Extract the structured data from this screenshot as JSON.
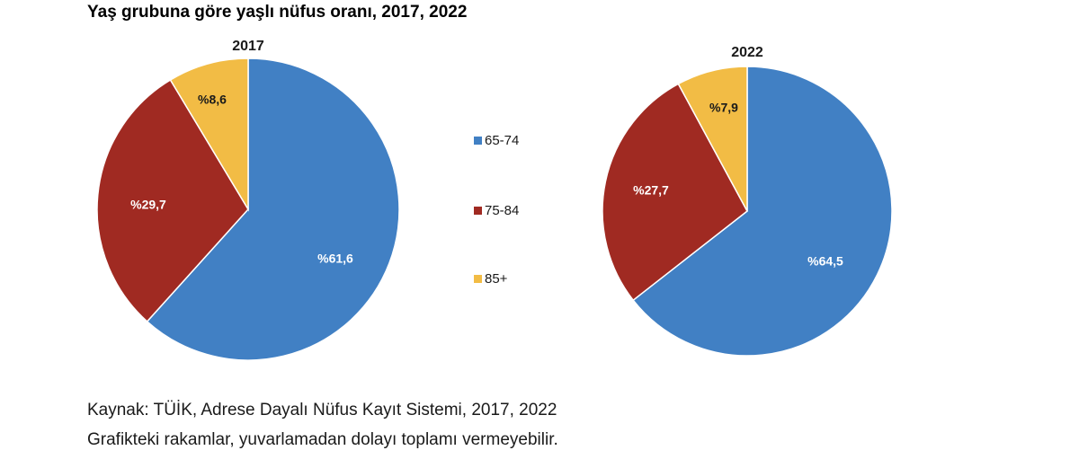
{
  "chart_data": {
    "type": "pie",
    "title": "Yaş grubuna göre yaşlı nüfus oranı, 2017, 2022",
    "categories": [
      "65-74",
      "75-84",
      "85+"
    ],
    "colors": [
      "#4180c4",
      "#a02a22",
      "#f2bc45"
    ],
    "label_prefix": "%",
    "decimal_separator": ",",
    "pies": [
      {
        "name": "2017",
        "values": [
          61.6,
          29.7,
          8.6
        ]
      },
      {
        "name": "2022",
        "values": [
          64.5,
          27.7,
          7.9
        ]
      }
    ],
    "legend_placement": "center"
  },
  "footer": {
    "source": "Kaynak: TÜİK, Adrese Dayalı Nüfus Kayıt Sistemi, 2017, 2022",
    "note": "Grafikteki rakamlar, yuvarlamadan dolayı toplamı vermeyebilir."
  }
}
